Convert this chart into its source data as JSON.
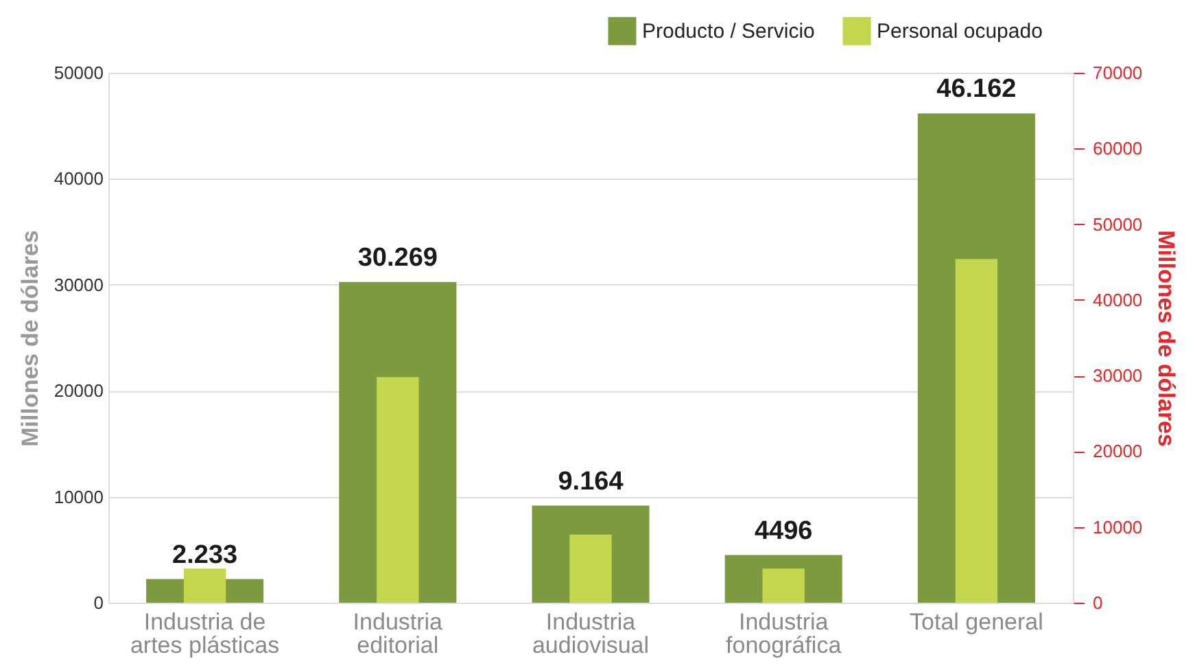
{
  "chart_data": {
    "type": "bar",
    "categories": [
      "Industria de artes plásticas",
      "Industria editorial",
      "Industria audiovisual",
      "Industria fonográfica",
      "Total general"
    ],
    "series": [
      {
        "name": "Producto / Servicio",
        "color": "#7d9b3e",
        "values": [
          2233,
          30269,
          9164,
          4496,
          46162
        ],
        "value_labels": [
          "2.233",
          "30.269",
          "9.164",
          "4496",
          "46.162"
        ]
      },
      {
        "name": "Personal ocupado",
        "color": "#c3d64e",
        "axis": "y2",
        "values": [
          4500,
          29800,
          9000,
          4500,
          45400
        ]
      }
    ],
    "ylabel": "Millones de dólares",
    "y2label": "Millones de dólares",
    "ylim": [
      0,
      50000
    ],
    "yticks": [
      0,
      10000,
      20000,
      30000,
      40000,
      50000
    ],
    "y2lim": [
      0,
      70000
    ],
    "y2ticks": [
      0,
      10000,
      20000,
      30000,
      40000,
      50000,
      60000,
      70000
    ],
    "grid": "y",
    "legend": "top right"
  }
}
